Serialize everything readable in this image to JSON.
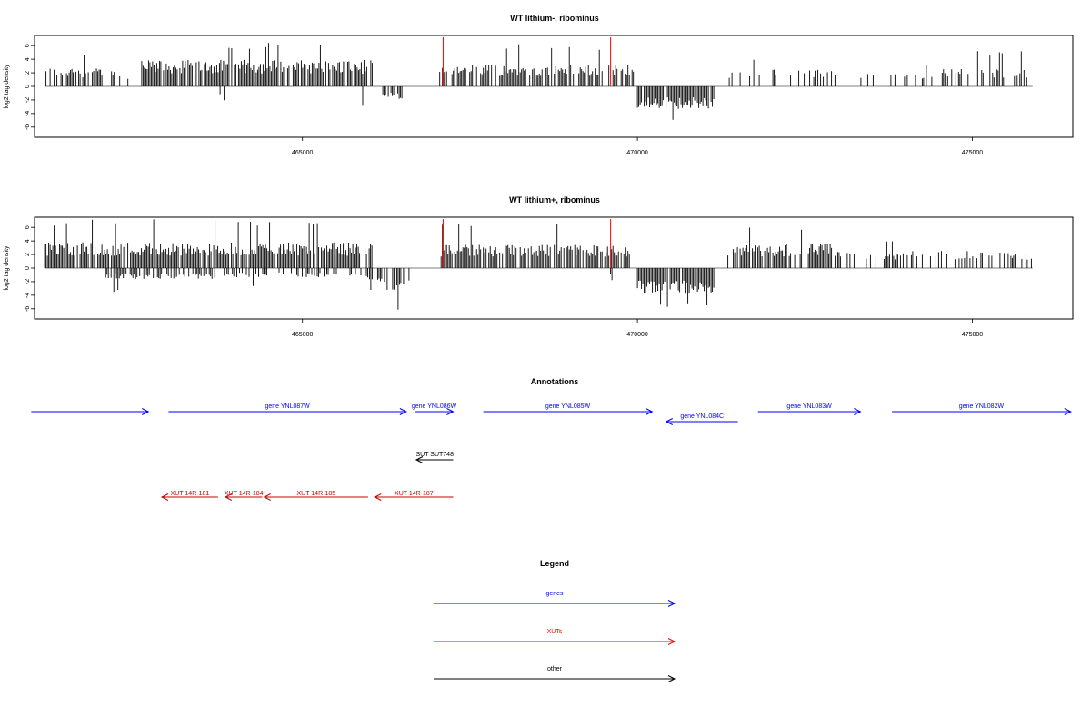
{
  "chart_data": [
    {
      "type": "bar",
      "title": "WT lithium-, ribominus",
      "ylabel": "log2 tag density",
      "xlim": [
        461000,
        476500
      ],
      "ylim": [
        -7.5,
        7.5
      ],
      "yticks": [
        -6,
        -4,
        -2,
        0,
        2,
        4,
        6
      ],
      "xticks": [
        465000,
        470000,
        475000
      ],
      "grid": false,
      "markers": [
        467100,
        469600
      ],
      "series": [
        {
          "strand": "plus",
          "segments": [
            {
              "x": [
                461150,
                462100
              ],
              "mean": 2.4,
              "peak": 5.2,
              "density": 0.55
            },
            {
              "x": [
                462150,
                462500
              ],
              "mean": 2.0,
              "peak": 5.0,
              "density": 0.35
            },
            {
              "x": [
                462600,
                466050
              ],
              "mean": 3.4,
              "peak": 6.5,
              "density": 0.85
            },
            {
              "x": [
                467050,
                469950
              ],
              "mean": 2.8,
              "peak": 6.3,
              "density": 0.7
            },
            {
              "x": [
                471350,
                472900
              ],
              "mean": 2.2,
              "peak": 4.2,
              "density": 0.3
            },
            {
              "x": [
                472950,
                474500
              ],
              "mean": 2.0,
              "peak": 3.3,
              "density": 0.2
            },
            {
              "x": [
                474550,
                475900
              ],
              "mean": 2.3,
              "peak": 5.3,
              "density": 0.3
            }
          ]
        },
        {
          "strand": "minus",
          "segments": [
            {
              "x": [
                463750,
                463850
              ],
              "mean": -1.8,
              "peak": -2.2,
              "density": 0.2
            },
            {
              "x": [
                465900,
                466000
              ],
              "mean": -2.5,
              "peak": -3.1,
              "density": 0.3
            },
            {
              "x": [
                466200,
                466500
              ],
              "mean": -1.6,
              "peak": -3.4,
              "density": 0.5
            },
            {
              "x": [
                470000,
                471150
              ],
              "mean": -2.9,
              "peak": -5.5,
              "density": 0.9
            }
          ]
        }
      ]
    },
    {
      "type": "bar",
      "title": "WT lithium+, ribominus",
      "ylabel": "log2 tag density",
      "xlim": [
        461000,
        476500
      ],
      "ylim": [
        -7.5,
        7.5
      ],
      "yticks": [
        -6,
        -4,
        -2,
        0,
        2,
        4,
        6
      ],
      "xticks": [
        465000,
        470000,
        475000
      ],
      "grid": false,
      "markers": [
        467100,
        469600
      ],
      "series": [
        {
          "strand": "plus",
          "segments": [
            {
              "x": [
                461150,
                466050
              ],
              "mean": 3.3,
              "peak": 7.2,
              "density": 0.9
            },
            {
              "x": [
                467050,
                469950
              ],
              "mean": 3.0,
              "peak": 6.6,
              "density": 0.85
            },
            {
              "x": [
                471350,
                472900
              ],
              "mean": 3.1,
              "peak": 6.0,
              "density": 0.8
            },
            {
              "x": [
                472950,
                475900
              ],
              "mean": 2.2,
              "peak": 4.3,
              "density": 0.4
            }
          ]
        },
        {
          "strand": "minus",
          "segments": [
            {
              "x": [
                462000,
                464000
              ],
              "mean": -1.4,
              "peak": -3.6,
              "density": 0.45
            },
            {
              "x": [
                464000,
                466000
              ],
              "mean": -1.2,
              "peak": -2.8,
              "density": 0.35
            },
            {
              "x": [
                466000,
                466600
              ],
              "mean": -2.8,
              "peak": -6.6,
              "density": 0.8
            },
            {
              "x": [
                469600,
                469700
              ],
              "mean": -1.6,
              "peak": -2.9,
              "density": 0.3
            },
            {
              "x": [
                470000,
                471150
              ],
              "mean": -3.2,
              "peak": -5.8,
              "density": 0.95
            },
            {
              "x": [
                473200,
                473300
              ],
              "mean": -1.5,
              "peak": -2.7,
              "density": 0.2
            }
          ]
        }
      ]
    }
  ],
  "annotations": {
    "title": "Annotations",
    "genes": {
      "color": "#0000ff",
      "items": [
        {
          "label": "",
          "start": 460950,
          "end": 462700,
          "strand": "+",
          "row": 0
        },
        {
          "label": "gene YNL087W",
          "start": 463000,
          "end": 466550,
          "strand": "+",
          "row": 0
        },
        {
          "label": "gene YNL086W",
          "start": 466680,
          "end": 467250,
          "strand": "+",
          "row": 0
        },
        {
          "label": "gene YNL085W",
          "start": 467700,
          "end": 470220,
          "strand": "+",
          "row": 0
        },
        {
          "label": "gene YNL084C",
          "start": 470430,
          "end": 471500,
          "strand": "-",
          "row": 1
        },
        {
          "label": "gene YNL083W",
          "start": 471800,
          "end": 473330,
          "strand": "+",
          "row": 0
        },
        {
          "label": "gene YNL082W",
          "start": 473800,
          "end": 476470,
          "strand": "+",
          "row": 0
        }
      ]
    },
    "other": {
      "color": "#000000",
      "items": [
        {
          "label": "SUT SUT748",
          "start": 466700,
          "end": 467250,
          "strand": "-"
        }
      ]
    },
    "xuts": {
      "color": "#cc0000",
      "items": [
        {
          "label": "XUT 14R-181",
          "start": 462900,
          "end": 463740,
          "strand": "-"
        },
        {
          "label": "XUT 14R-184",
          "start": 463850,
          "end": 464400,
          "strand": "-"
        },
        {
          "label": "XUT 14R-185",
          "start": 464430,
          "end": 465980,
          "strand": "-"
        },
        {
          "label": "XUT 14R-187",
          "start": 466080,
          "end": 467250,
          "strand": "-"
        }
      ]
    }
  },
  "legend": {
    "title": "Legend",
    "items": [
      {
        "label": "genes",
        "color": "#0000ff"
      },
      {
        "label": "XUTs",
        "color": "#ff0000"
      },
      {
        "label": "other",
        "color": "#000000"
      }
    ]
  }
}
